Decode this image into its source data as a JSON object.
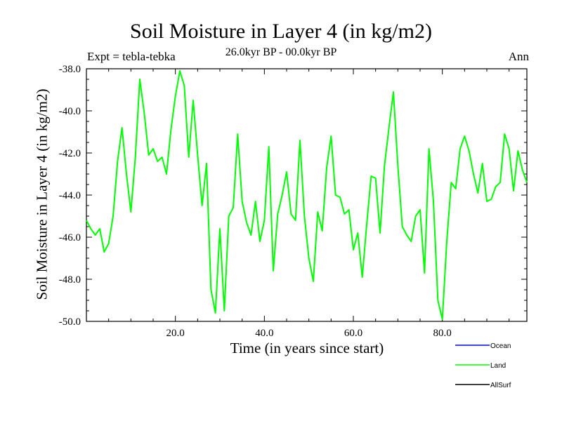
{
  "chart_data": {
    "type": "line",
    "title": "Soil Moisture in Layer 4 (in kg/m2)",
    "subtitle": "26.0kyr BP - 00.0kyr BP",
    "expt_label": "Expt = tebla-tebka",
    "season_label": "Ann",
    "xlabel": "Time (in years since start)",
    "ylabel": "Soil Moisture in Layer 4 (in kg/m2)",
    "xlim": [
      0,
      99
    ],
    "ylim": [
      -50.0,
      -38.0
    ],
    "x_ticks": [
      "20.0",
      "40.0",
      "60.0",
      "80.0"
    ],
    "x_tick_values": [
      20,
      40,
      60,
      80
    ],
    "y_ticks": [
      "-38.0",
      "-40.0",
      "-42.0",
      "-44.0",
      "-46.0",
      "-48.0",
      "-50.0"
    ],
    "y_tick_values": [
      -38,
      -40,
      -42,
      -44,
      -46,
      -48,
      -50
    ],
    "legend": [
      {
        "name": "Ocean",
        "color": "#0000ff"
      },
      {
        "name": "Land",
        "color": "#00ff00"
      },
      {
        "name": "AllSurf",
        "color": "#000000"
      }
    ],
    "series": [
      {
        "name": "Land",
        "color": "#00ff00",
        "x": [
          0,
          1,
          2,
          3,
          4,
          5,
          6,
          7,
          8,
          9,
          10,
          11,
          12,
          13,
          14,
          15,
          16,
          17,
          18,
          19,
          20,
          21,
          22,
          23,
          24,
          25,
          26,
          27,
          28,
          29,
          30,
          31,
          32,
          33,
          34,
          35,
          36,
          37,
          38,
          39,
          40,
          41,
          42,
          43,
          44,
          45,
          46,
          47,
          48,
          49,
          50,
          51,
          52,
          53,
          54,
          55,
          56,
          57,
          58,
          59,
          60,
          61,
          62,
          63,
          64,
          65,
          66,
          67,
          68,
          69,
          70,
          71,
          72,
          73,
          74,
          75,
          76,
          77,
          78,
          79,
          80,
          81,
          82,
          83,
          84,
          85,
          86,
          87,
          88,
          89,
          90,
          91,
          92,
          93,
          94,
          95,
          96,
          97,
          98,
          99
        ],
        "values": [
          -45.2,
          -45.6,
          -45.9,
          -45.6,
          -46.7,
          -46.3,
          -45.0,
          -42.4,
          -40.8,
          -43.0,
          -44.8,
          -42.2,
          -38.5,
          -40.1,
          -42.1,
          -41.8,
          -42.4,
          -42.2,
          -43.0,
          -40.9,
          -39.3,
          -38.1,
          -38.8,
          -42.2,
          -39.5,
          -42.1,
          -44.5,
          -42.5,
          -48.5,
          -49.6,
          -45.6,
          -49.5,
          -45.0,
          -44.6,
          -41.1,
          -44.3,
          -45.3,
          -45.9,
          -44.3,
          -46.2,
          -45.2,
          -41.7,
          -47.6,
          -44.9,
          -44.0,
          -42.9,
          -44.9,
          -45.2,
          -41.4,
          -45.0,
          -47.0,
          -48.1,
          -44.8,
          -45.7,
          -42.7,
          -41.2,
          -44.0,
          -44.1,
          -44.9,
          -44.7,
          -46.6,
          -45.8,
          -47.9,
          -45.4,
          -43.1,
          -43.2,
          -45.8,
          -42.6,
          -40.8,
          -39.1,
          -42.6,
          -45.5,
          -45.9,
          -46.2,
          -45.0,
          -44.7,
          -47.7,
          -41.8,
          -44.3,
          -49.0,
          -49.9,
          -46.2,
          -43.4,
          -43.7,
          -41.8,
          -41.2,
          -41.9,
          -43.0,
          -43.9,
          -42.5,
          -44.3,
          -44.2,
          -43.6,
          -43.4,
          -41.1,
          -41.8,
          -43.8,
          -41.9,
          -42.8,
          -43.4
        ]
      }
    ]
  }
}
